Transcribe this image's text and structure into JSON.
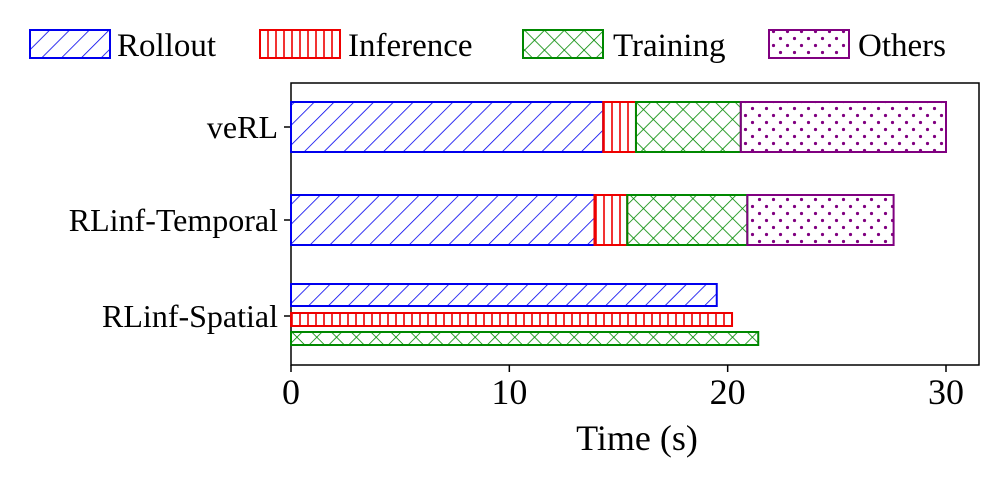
{
  "colors": {
    "rollout": "#0000ee",
    "inference": "#ee0000",
    "training": "#008800",
    "others": "#800080"
  },
  "chart_data": {
    "type": "bar",
    "orientation": "horizontal",
    "xlabel": "Time (s)",
    "ylabel": "",
    "xlim": [
      0,
      31.5
    ],
    "xticks": [
      "0",
      "10",
      "20",
      "30"
    ],
    "grid": false,
    "legend_position": "top",
    "legend": [
      {
        "key": "rollout",
        "label": "Rollout"
      },
      {
        "key": "inference",
        "label": "Inference"
      },
      {
        "key": "training",
        "label": "Training"
      },
      {
        "key": "others",
        "label": "Others"
      }
    ],
    "rows": [
      {
        "label": "veRL",
        "layout": "stacked",
        "segments": [
          {
            "series": "rollout",
            "value": 14.3
          },
          {
            "series": "inference",
            "value": 1.5
          },
          {
            "series": "training",
            "value": 4.8
          },
          {
            "series": "others",
            "value": 9.4
          }
        ]
      },
      {
        "label": "RLinf-Temporal",
        "layout": "stacked",
        "segments": [
          {
            "series": "rollout",
            "value": 13.9
          },
          {
            "series": "inference",
            "value": 1.5
          },
          {
            "series": "training",
            "value": 5.5
          },
          {
            "series": "others",
            "value": 6.7
          }
        ]
      },
      {
        "label": "RLinf-Spatial",
        "layout": "parallel",
        "segments": [
          {
            "series": "rollout",
            "value": 19.5
          },
          {
            "series": "inference",
            "value": 20.2
          },
          {
            "series": "training",
            "value": 21.4
          }
        ]
      }
    ]
  }
}
